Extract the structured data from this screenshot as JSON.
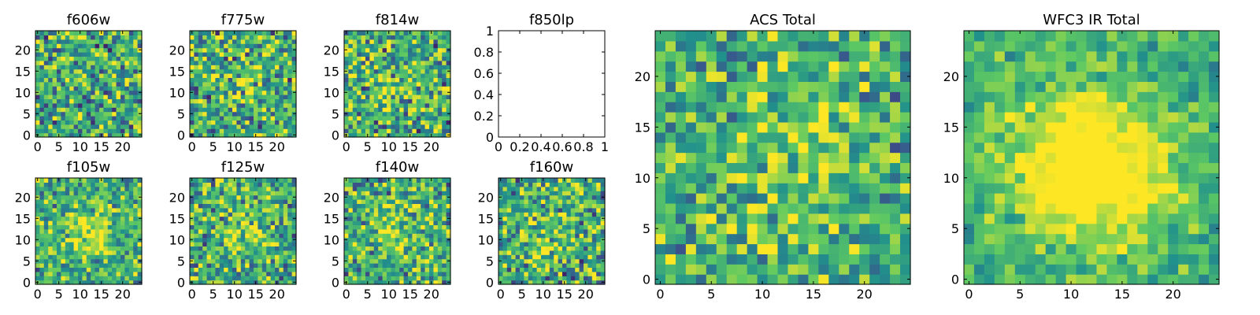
{
  "figure": {
    "type": "heatmap",
    "colormap": [
      "#440154",
      "#3b528b",
      "#21918c",
      "#5ec962",
      "#fde725"
    ]
  },
  "chart_data": [
    {
      "type": "heatmap",
      "title": "f606w",
      "grid_size": 25,
      "seed": 11,
      "source_amp": 0.15,
      "noise": 1.0,
      "center": [
        13,
        12
      ],
      "sigma": 4,
      "xticks": [
        0,
        5,
        10,
        15,
        20
      ],
      "yticks": [
        0,
        5,
        10,
        15,
        20
      ],
      "xlim": [
        -0.5,
        24.5
      ],
      "ylim": [
        -0.5,
        24.5
      ]
    },
    {
      "type": "heatmap",
      "title": "f775w",
      "grid_size": 25,
      "seed": 23,
      "source_amp": 0.25,
      "noise": 1.0,
      "center": [
        13,
        12
      ],
      "sigma": 4,
      "xticks": [
        0,
        5,
        10,
        15,
        20
      ],
      "yticks": [
        0,
        5,
        10,
        15,
        20
      ],
      "xlim": [
        -0.5,
        24.5
      ],
      "ylim": [
        -0.5,
        24.5
      ]
    },
    {
      "type": "heatmap",
      "title": "f814w",
      "grid_size": 25,
      "seed": 37,
      "source_amp": 0.35,
      "noise": 1.0,
      "center": [
        13,
        12
      ],
      "sigma": 4,
      "xticks": [
        0,
        5,
        10,
        15,
        20
      ],
      "yticks": [
        0,
        5,
        10,
        15,
        20
      ],
      "xlim": [
        -0.5,
        24.5
      ],
      "ylim": [
        -0.5,
        24.5
      ]
    },
    {
      "type": "empty",
      "title": "f850lp",
      "xticks": [
        0.0,
        0.2,
        0.4,
        0.6,
        0.8,
        1.0
      ],
      "yticks": [
        0.0,
        0.2,
        0.4,
        0.6,
        0.8,
        1.0
      ],
      "xlim": [
        0,
        1
      ],
      "ylim": [
        0,
        1
      ]
    },
    {
      "type": "heatmap",
      "title": "f105w",
      "grid_size": 25,
      "seed": 41,
      "source_amp": 0.75,
      "noise": 0.8,
      "center": [
        12,
        12
      ],
      "sigma": 4,
      "xticks": [
        0,
        5,
        10,
        15,
        20
      ],
      "yticks": [
        0,
        5,
        10,
        15,
        20
      ],
      "xlim": [
        -0.5,
        24.5
      ],
      "ylim": [
        -0.5,
        24.5
      ]
    },
    {
      "type": "heatmap",
      "title": "f125w",
      "grid_size": 25,
      "seed": 53,
      "source_amp": 0.45,
      "noise": 0.9,
      "center": [
        12,
        12
      ],
      "sigma": 4,
      "xticks": [
        0,
        5,
        10,
        15,
        20
      ],
      "yticks": [
        0,
        5,
        10,
        15,
        20
      ],
      "xlim": [
        -0.5,
        24.5
      ],
      "ylim": [
        -0.5,
        24.5
      ]
    },
    {
      "type": "heatmap",
      "title": "f140w",
      "grid_size": 25,
      "seed": 67,
      "source_amp": 0.55,
      "noise": 0.9,
      "center": [
        12,
        12
      ],
      "sigma": 4,
      "xticks": [
        0,
        5,
        10,
        15,
        20
      ],
      "yticks": [
        0,
        5,
        10,
        15,
        20
      ],
      "xlim": [
        -0.5,
        24.5
      ],
      "ylim": [
        -0.5,
        24.5
      ]
    },
    {
      "type": "heatmap",
      "title": "f160w",
      "grid_size": 25,
      "seed": 79,
      "source_amp": 0.4,
      "noise": 1.0,
      "center": [
        12,
        11
      ],
      "sigma": 4,
      "xticks": [
        0,
        5,
        10,
        15,
        20
      ],
      "yticks": [
        0,
        5,
        10,
        15,
        20
      ],
      "xlim": [
        -0.5,
        24.5
      ],
      "ylim": [
        -0.5,
        24.5
      ]
    },
    {
      "type": "heatmap",
      "title": "ACS Total",
      "grid_size": 25,
      "seed": 97,
      "source_amp": 0.5,
      "noise": 0.8,
      "center": [
        14,
        12
      ],
      "sigma": 5,
      "xticks": [
        0,
        5,
        10,
        15,
        20
      ],
      "yticks": [
        0,
        5,
        10,
        15,
        20
      ],
      "xlim": [
        -0.5,
        24.5
      ],
      "ylim": [
        -0.5,
        24.5
      ]
    },
    {
      "type": "heatmap",
      "title": "WFC3 IR Total",
      "grid_size": 25,
      "seed": 113,
      "source_amp": 1.6,
      "noise": 0.5,
      "center": [
        12,
        11
      ],
      "sigma": 5,
      "xticks": [
        0,
        5,
        10,
        15,
        20
      ],
      "yticks": [
        0,
        5,
        10,
        15,
        20
      ],
      "xlim": [
        -0.5,
        24.5
      ],
      "ylim": [
        -0.5,
        24.5
      ]
    }
  ]
}
